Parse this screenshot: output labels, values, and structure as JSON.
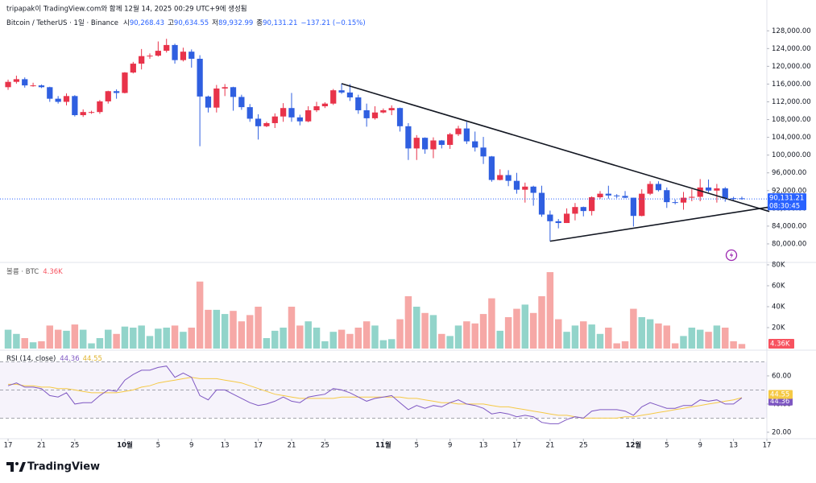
{
  "header": {
    "attribution": "tripapak이 TradingView.com와 함께 12월 14, 2025 00:29 UTC+9에 생성됨",
    "ohlc": [
      {
        "label": "시",
        "value": "90,268.43"
      },
      {
        "label": "고",
        "value": "90,634.55"
      },
      {
        "label": "저",
        "value": "89,932.99"
      },
      {
        "label": "종",
        "value": "90,131.21"
      }
    ],
    "change": "−137.21 (−0.15%)",
    "footer": "TradingView"
  },
  "chart_data": [
    {
      "type": "candlestick",
      "title": "Bitcoin / TetherUS · 1일 · Binance",
      "up_color": "#e8334a",
      "down_color": "#2f5fe0",
      "open": [
        115300,
        116500,
        117100,
        115700,
        115700,
        115300,
        112700,
        112000,
        113300,
        109000,
        109700,
        109700,
        112100,
        114400,
        114000,
        118600,
        120600,
        122300,
        122400,
        123500,
        124800,
        121400,
        123300,
        121700,
        113200,
        110700,
        115000,
        115300,
        113100,
        110800,
        108200,
        106500,
        107200,
        108700,
        110600,
        108500,
        107600,
        110100,
        111000,
        111600,
        114600,
        114100,
        113000,
        110100,
        108300,
        109600,
        110100,
        110600,
        106500,
        101500,
        103900,
        101300,
        103300,
        102300,
        104700,
        106000,
        103100,
        101700,
        99700,
        94400,
        95500,
        94200,
        92200,
        92900,
        91500,
        86600,
        85100,
        84700,
        86800,
        88300,
        87400,
        90500,
        91300,
        90900,
        90800,
        90400,
        86300,
        91300,
        93500,
        92100,
        89400,
        89300,
        90400,
        90600,
        92700,
        92000,
        92500,
        90300,
        90268.43
      ],
      "high": [
        117000,
        117900,
        117500,
        116300,
        115900,
        115400,
        113300,
        113900,
        113500,
        110300,
        110000,
        112400,
        114500,
        114800,
        118700,
        121000,
        123900,
        122900,
        125600,
        126200,
        125100,
        124200,
        123800,
        122500,
        113400,
        115800,
        116000,
        115400,
        113600,
        111500,
        109200,
        107500,
        109400,
        111700,
        114000,
        109100,
        111000,
        112000,
        111900,
        114900,
        116100,
        116000,
        113600,
        111600,
        111000,
        110500,
        111200,
        110700,
        107200,
        104500,
        104000,
        104000,
        103400,
        105000,
        106600,
        107500,
        105300,
        104100,
        99800,
        96800,
        96600,
        96000,
        93800,
        93100,
        93100,
        87500,
        85600,
        88000,
        89200,
        88400,
        90700,
        91900,
        93100,
        91200,
        91900,
        90400,
        92300,
        94100,
        94100,
        92700,
        90000,
        91700,
        92300,
        94600,
        94500,
        93500,
        92800,
        90600,
        90634.55
      ],
      "low": [
        114700,
        116100,
        115200,
        115400,
        115100,
        112000,
        111600,
        111200,
        108700,
        108600,
        109300,
        109300,
        111600,
        112700,
        113900,
        118400,
        119300,
        121700,
        122200,
        123100,
        120600,
        121100,
        119700,
        102000,
        109600,
        109600,
        113300,
        110000,
        110200,
        107500,
        103500,
        106300,
        106100,
        107500,
        107500,
        106700,
        107400,
        109700,
        110600,
        111300,
        113800,
        112200,
        109300,
        106400,
        108000,
        109400,
        109000,
        105300,
        98900,
        98900,
        100300,
        99300,
        101500,
        101400,
        104300,
        102500,
        100800,
        98000,
        94000,
        94300,
        93000,
        91300,
        89300,
        88600,
        86100,
        80600,
        83500,
        84700,
        85300,
        86200,
        86400,
        90100,
        90200,
        90300,
        90300,
        83900,
        86200,
        91000,
        91800,
        88100,
        88900,
        87700,
        89600,
        89600,
        91600,
        89300,
        89500,
        89800,
        89932.99
      ],
      "close": [
        116500,
        117100,
        115700,
        115700,
        115300,
        112700,
        112000,
        113300,
        109000,
        109700,
        109700,
        112100,
        114400,
        114000,
        118600,
        120600,
        122300,
        122400,
        123500,
        124800,
        121400,
        123300,
        121700,
        113200,
        110700,
        115000,
        115300,
        113100,
        110800,
        108200,
        106500,
        107200,
        108700,
        110600,
        108500,
        107600,
        110100,
        111000,
        111600,
        114600,
        114100,
        113000,
        110100,
        108300,
        109600,
        110100,
        110600,
        106500,
        101500,
        103900,
        101300,
        103300,
        102300,
        104700,
        106000,
        103100,
        101700,
        99700,
        94400,
        95500,
        94200,
        92200,
        92900,
        91500,
        86600,
        85100,
        84700,
        86800,
        88300,
        87400,
        90500,
        91300,
        90900,
        90800,
        90400,
        86300,
        91300,
        93500,
        92100,
        89400,
        89300,
        90400,
        90600,
        92700,
        92000,
        92500,
        90300,
        90268.43,
        90131.21
      ],
      "ylim": [
        76000,
        129500
      ],
      "yticks": [
        {
          "value": 80000,
          "label": "80,000.00"
        },
        {
          "value": 84000,
          "label": "84,000.00"
        },
        {
          "value": 88000,
          "label": "88,000.00"
        },
        {
          "value": 92000,
          "label": "92,000.00"
        },
        {
          "value": 96000,
          "label": "96,000.00"
        },
        {
          "value": 100000,
          "label": "100,000.00"
        },
        {
          "value": 104000,
          "label": "104,000.00"
        },
        {
          "value": 108000,
          "label": "108,000.00"
        },
        {
          "value": 112000,
          "label": "112,000.00"
        },
        {
          "value": 116000,
          "label": "116,000.00"
        },
        {
          "value": 120000,
          "label": "120,000.00"
        },
        {
          "value": 124000,
          "label": "124,000.00"
        },
        {
          "value": 128000,
          "label": "128,000.00"
        }
      ],
      "last_price": {
        "value": 90131.21,
        "label": "90,131.21"
      },
      "countdown": "08:30:45",
      "last_price_color": "#2962ff",
      "trendlines": [
        {
          "x": [
            40,
            91.3
          ],
          "y": [
            116100,
            87300
          ]
        },
        {
          "x": [
            65,
            91.3
          ],
          "y": [
            80600,
            88300
          ]
        }
      ]
    },
    {
      "type": "bar",
      "title": "볼륨 · BTC",
      "up_color": "#92d4ca",
      "down_color": "#f6a8a6",
      "label_color": "#f7525f",
      "values": [
        18000,
        14000,
        10000,
        6000,
        7000,
        22000,
        18000,
        17000,
        23000,
        18000,
        5000,
        10000,
        18000,
        14000,
        21000,
        20000,
        22000,
        12000,
        19000,
        20000,
        22000,
        16000,
        20000,
        64000,
        37000,
        37000,
        33000,
        36000,
        26000,
        32000,
        40000,
        10000,
        17000,
        20000,
        40000,
        22000,
        26000,
        20000,
        7000,
        16000,
        18000,
        14000,
        20000,
        26000,
        22000,
        8000,
        9000,
        28000,
        50000,
        40000,
        34000,
        32000,
        14000,
        12000,
        22000,
        26000,
        24000,
        33000,
        48000,
        17000,
        30000,
        38000,
        42000,
        34000,
        50000,
        73000,
        28000,
        16000,
        22000,
        26000,
        23000,
        14000,
        20000,
        5000,
        7000,
        38000,
        30000,
        28000,
        24000,
        22000,
        5000,
        12000,
        20000,
        18000,
        16000,
        22000,
        20000,
        7000,
        4360
      ],
      "last_label": "4.36K",
      "ylim": [
        0,
        81500
      ],
      "yticks": [
        {
          "value": 20000,
          "label": "20K"
        },
        {
          "value": 40000,
          "label": "40K"
        },
        {
          "value": 60000,
          "label": "60K"
        },
        {
          "value": 80000,
          "label": "80K"
        }
      ]
    },
    {
      "type": "line",
      "title": "RSI (14, close)",
      "series": [
        {
          "color": "#7e57c2",
          "last_label": "44.36",
          "values": [
            53,
            55,
            52,
            52,
            51,
            46,
            45,
            48,
            40,
            41,
            41,
            46,
            50,
            49,
            57,
            61,
            64,
            64,
            66,
            67,
            59,
            62,
            59,
            46,
            43,
            50,
            50,
            47,
            44,
            41,
            39,
            40,
            42,
            45,
            42,
            41,
            45,
            46,
            47,
            51,
            50,
            48,
            45,
            42,
            44,
            45,
            46,
            41,
            36,
            39,
            37,
            39,
            38,
            41,
            43,
            40,
            39,
            37,
            33,
            34,
            33,
            31,
            32,
            31,
            27,
            26,
            26,
            29,
            31,
            30,
            35,
            36,
            36,
            36,
            35,
            32,
            38,
            41,
            39,
            37,
            37,
            39,
            39,
            43,
            42,
            43,
            40,
            40,
            44.36
          ]
        },
        {
          "color": "#f5c945",
          "last_label": "44.55",
          "values": [
            54,
            54,
            53,
            53,
            52,
            52,
            51,
            51,
            50,
            49,
            48,
            48,
            48,
            48,
            49,
            50,
            52,
            53,
            55,
            56,
            57,
            58,
            59,
            58,
            58,
            58,
            57,
            56,
            55,
            53,
            51,
            49,
            47,
            46,
            45,
            44,
            44,
            44,
            44,
            44,
            45,
            45,
            45,
            45,
            45,
            45,
            45,
            45,
            44,
            44,
            43,
            42,
            41,
            41,
            40,
            40,
            40,
            40,
            39,
            38,
            38,
            37,
            36,
            35,
            34,
            33,
            32,
            32,
            31,
            30,
            30,
            30,
            30,
            30,
            31,
            31,
            32,
            33,
            34,
            35,
            36,
            37,
            38,
            39,
            40,
            41,
            42,
            43,
            44.55
          ]
        }
      ],
      "band_color": "#7e57c2",
      "levels": [
        70,
        50,
        30
      ],
      "ylim": [
        15.4,
        77.1
      ],
      "yticks": [
        {
          "value": 20,
          "label": "20.00"
        },
        {
          "value": 40,
          "label": "40.00"
        },
        {
          "value": 60,
          "label": "60.00"
        }
      ],
      "xlim": [
        -0.97,
        91
      ],
      "xticks": [
        {
          "value": 0,
          "label": "17"
        },
        {
          "value": 4,
          "label": "21"
        },
        {
          "value": 8,
          "label": "25"
        },
        {
          "value": 14,
          "label": "10월"
        },
        {
          "value": 18,
          "label": "5"
        },
        {
          "value": 22,
          "label": "9"
        },
        {
          "value": 26,
          "label": "13"
        },
        {
          "value": 30,
          "label": "17"
        },
        {
          "value": 34,
          "label": "21"
        },
        {
          "value": 38,
          "label": "25"
        },
        {
          "value": 45,
          "label": "11월"
        },
        {
          "value": 49,
          "label": "5"
        },
        {
          "value": 53,
          "label": "9"
        },
        {
          "value": 57,
          "label": "13"
        },
        {
          "value": 61,
          "label": "17"
        },
        {
          "value": 65,
          "label": "21"
        },
        {
          "value": 69,
          "label": "25"
        },
        {
          "value": 75,
          "label": "12월"
        },
        {
          "value": 79,
          "label": "5"
        },
        {
          "value": 83,
          "label": "9"
        },
        {
          "value": 87,
          "label": "13"
        },
        {
          "value": 91,
          "label": "17"
        }
      ]
    }
  ]
}
